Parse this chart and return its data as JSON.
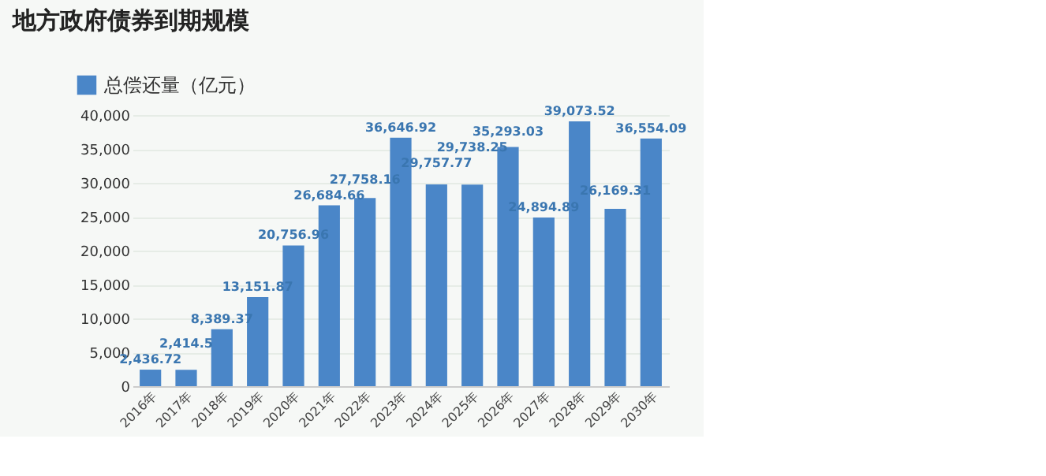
{
  "chart_data": {
    "type": "bar",
    "title": "地方政府债券到期规模",
    "categories": [
      "2016年",
      "2017年",
      "2018年",
      "2019年",
      "2020年",
      "2021年",
      "2022年",
      "2023年",
      "2024年",
      "2025年",
      "2026年",
      "2027年",
      "2028年",
      "2029年",
      "2030年"
    ],
    "series": [
      {
        "name": "总偿还量（亿元）",
        "color": "#4a86c8",
        "values": [
          2436.72,
          2414.5,
          8389.37,
          13151.87,
          20756.96,
          26684.66,
          27758.16,
          36646.92,
          29757.77,
          29738.25,
          35293.03,
          24894.89,
          39073.52,
          26169.31,
          36554.09
        ],
        "value_labels": [
          "2,436.72",
          "2,414.5",
          "8,389.37",
          "13,151.87",
          "20,756.96",
          "26,684.66",
          "27,758.16",
          "36,646.92",
          "29,757.77",
          "29,738.25",
          "35,293.03",
          "24,894.89",
          "39,073.52",
          "26,169.31",
          "36,554.09"
        ]
      }
    ],
    "ylim": [
      0,
      40000
    ],
    "yticks": [
      {
        "value": 0,
        "label": "0"
      },
      {
        "value": 5000,
        "label": "5,000"
      },
      {
        "value": 10000,
        "label": "10,000"
      },
      {
        "value": 15000,
        "label": "15,000"
      },
      {
        "value": 20000,
        "label": "20,000"
      },
      {
        "value": 25000,
        "label": "25,000"
      },
      {
        "value": 30000,
        "label": "30,000"
      },
      {
        "value": 35000,
        "label": "35,000"
      },
      {
        "value": 40000,
        "label": "40,000"
      }
    ],
    "grid": "y",
    "legend": "top left"
  }
}
